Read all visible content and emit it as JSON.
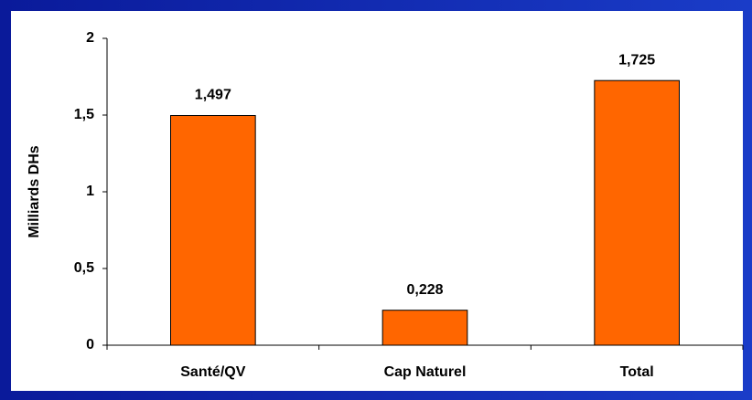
{
  "chart_data": {
    "type": "bar",
    "y_label": "Milliards DHs",
    "categories": [
      "Santé/QV",
      "Cap Naturel",
      "Total"
    ],
    "values": [
      1.497,
      0.228,
      1.725
    ],
    "value_labels": [
      "1,497",
      "0,228",
      "1,725"
    ],
    "color": "#ff6600",
    "ylim": [
      0,
      2
    ],
    "yticks": [
      0,
      {
        "value": 0.5,
        "label": "0,5"
      },
      1,
      {
        "value": 1.5,
        "label": "1,5"
      },
      2
    ]
  }
}
